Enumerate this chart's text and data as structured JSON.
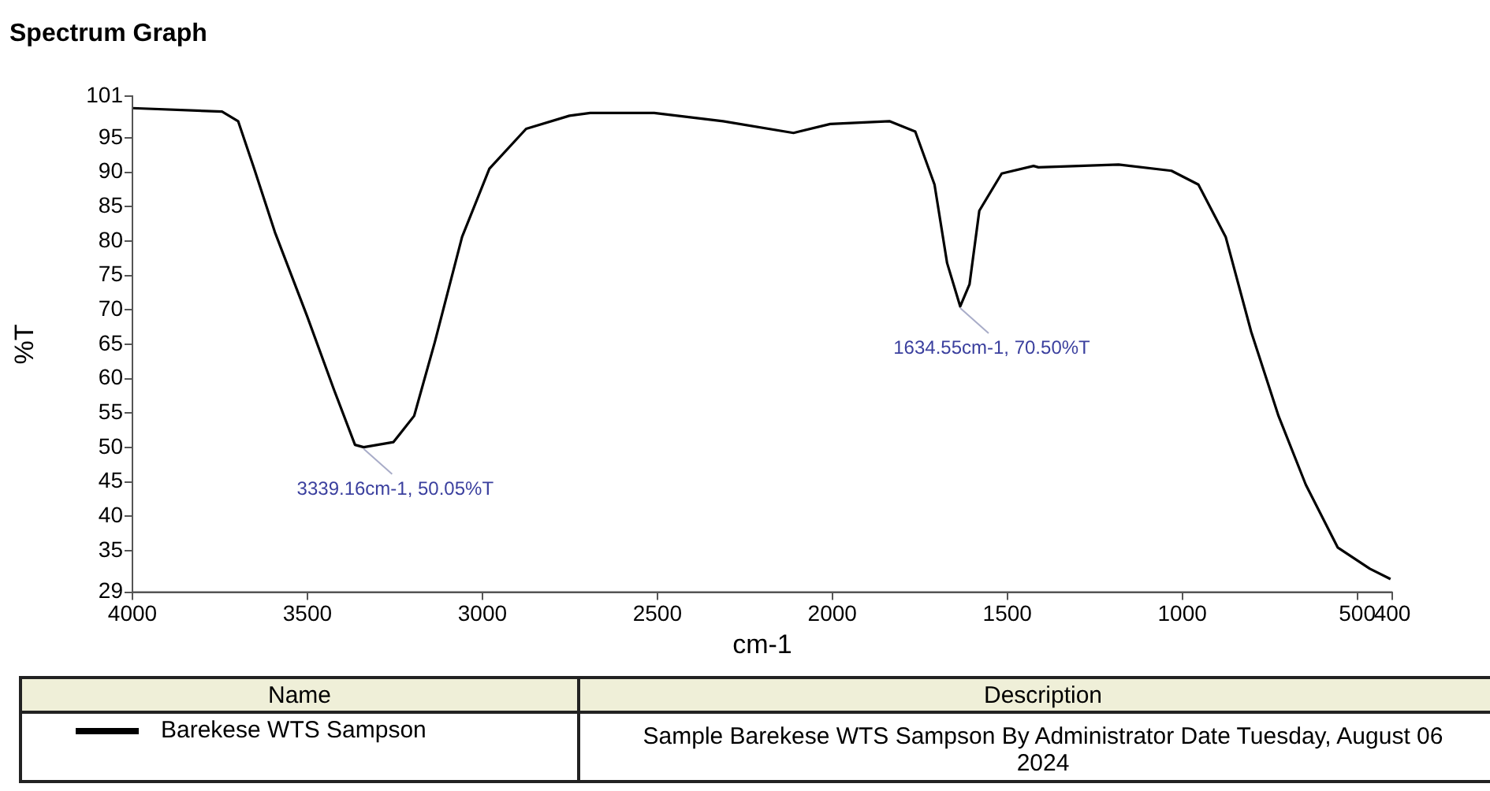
{
  "chart_data": {
    "type": "line",
    "title": "Spectrum Graph",
    "xlabel": "cm-1",
    "ylabel": "%T",
    "xlim": [
      4000,
      400
    ],
    "xticks": [
      4000,
      3500,
      3000,
      2500,
      2000,
      1500,
      1000,
      500,
      400
    ],
    "ylim": [
      29,
      101
    ],
    "yticks": [
      29,
      35,
      40,
      45,
      50,
      55,
      60,
      65,
      70,
      75,
      80,
      85,
      90,
      95,
      101
    ],
    "legend": "bottom",
    "legend_title": "Name",
    "series": [
      {
        "name": "Barekese WTS Sampson",
        "color": "#000000",
        "x": [
          4000,
          3744,
          3698,
          3652,
          3593,
          3501,
          3424,
          3364,
          3339.16,
          3254,
          3195,
          3136,
          3058,
          2980,
          2875,
          2751,
          2692,
          2509,
          2312,
          2111,
          2006,
          1837,
          1763,
          1708,
          1672,
          1634.55,
          1608,
          1580,
          1516,
          1425,
          1411,
          1182,
          1031,
          954,
          876,
          803,
          725,
          647,
          556,
          464,
          405
        ],
        "values": [
          99.3,
          98.8,
          97.4,
          90.5,
          81.3,
          69.1,
          58.4,
          50.4,
          50.05,
          50.8,
          54.6,
          65.3,
          80.6,
          90.5,
          96.3,
          98.2,
          98.6,
          98.6,
          97.4,
          95.7,
          97.0,
          97.4,
          95.9,
          88.2,
          76.8,
          70.5,
          73.7,
          84.4,
          89.8,
          90.9,
          90.7,
          91.1,
          90.2,
          88.2,
          80.6,
          66.8,
          54.6,
          44.6,
          35.5,
          32.4,
          30.9
        ]
      }
    ],
    "annotations": [
      {
        "text": "3339.16cm-1, 50.05%T",
        "x": 3339.16,
        "y": 50.05
      },
      {
        "text": "1634.55cm-1, 70.50%T",
        "x": 1634.55,
        "y": 70.5
      },
      "Description",
      "Sample Barekese WTS Sampson By Administrator Date Tuesday, August 06 2024"
    ]
  }
}
